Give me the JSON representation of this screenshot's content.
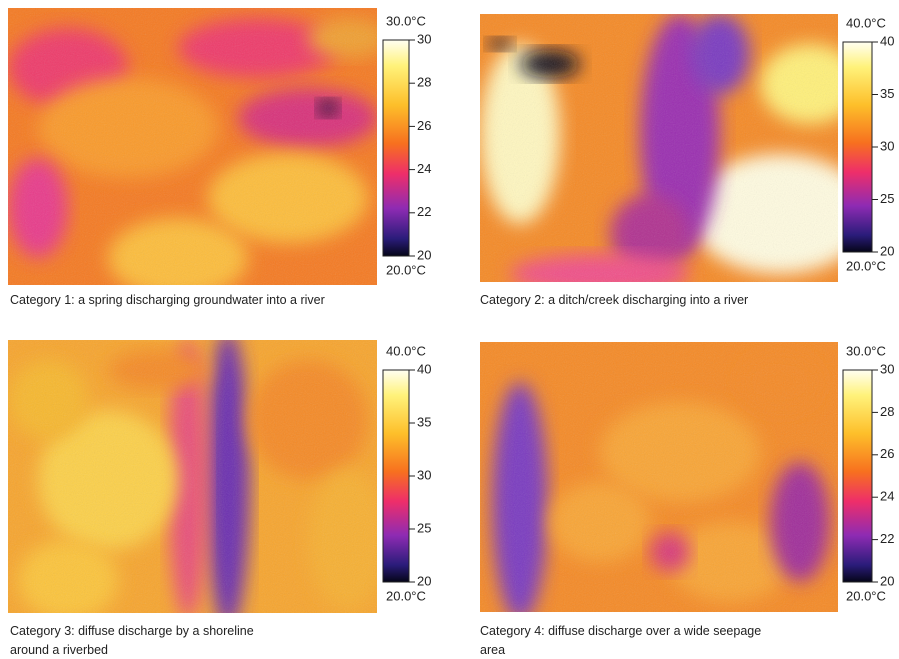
{
  "panels": [
    {
      "caption": [
        "Category 1:  a spring discharging groundwater into a river"
      ],
      "scale_max": "30.0°C",
      "scale_min": "20.0°C",
      "ticks": [
        20,
        22,
        24,
        26,
        28,
        30
      ]
    },
    {
      "caption": [
        "Category 2: a ditch/creek discharging into a river"
      ],
      "scale_max": "40.0°C",
      "scale_min": "20.0°C",
      "ticks": [
        20,
        25,
        30,
        35,
        40
      ]
    },
    {
      "caption": [
        "Category 3: diffuse discharge by a shoreline",
        "around a riverbed"
      ],
      "scale_max": "40.0°C",
      "scale_min": "20.0°C",
      "ticks": [
        20,
        25,
        30,
        35,
        40
      ]
    },
    {
      "caption": [
        "Category 4: diffuse discharge over a wide seepage",
        "area"
      ],
      "scale_max": "30.0°C",
      "scale_min": "20.0°C",
      "ticks": [
        20,
        22,
        24,
        26,
        28,
        30
      ]
    }
  ]
}
